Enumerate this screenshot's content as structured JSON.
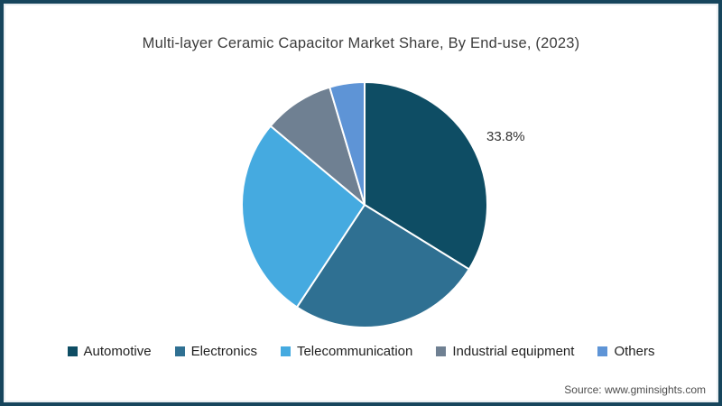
{
  "frame": {
    "border_color": "#16455c",
    "background": "#ffffff"
  },
  "header": {
    "title": "Multi-layer Ceramic Capacitor Market Share, By End-use, (2023)"
  },
  "chart_data": {
    "type": "pie",
    "title": "Multi-layer Ceramic Capacitor Market Share, By End-use, (2023)",
    "unit": "%",
    "start_angle_deg": 0,
    "direction": "clockwise",
    "categories": [
      "Automotive",
      "Electronics",
      "Telecommunication",
      "Industrial equipment",
      "Others"
    ],
    "values": [
      33.8,
      25.5,
      26.8,
      9.3,
      4.6
    ],
    "values_estimated_from_angles": [
      false,
      true,
      true,
      true,
      true
    ],
    "colors": [
      "#0e4d64",
      "#2f7092",
      "#45aae0",
      "#6f8092",
      "#5e94d6"
    ],
    "slice_stroke_color": "#ffffff",
    "data_labels": [
      {
        "series": "Automotive",
        "text": "33.8%"
      }
    ],
    "legend_position": "bottom"
  },
  "legend": {
    "items": [
      {
        "label": "Automotive",
        "color": "#0e4d64"
      },
      {
        "label": "Electronics",
        "color": "#2f7092"
      },
      {
        "label": "Telecommunication",
        "color": "#45aae0"
      },
      {
        "label": "Industrial equipment",
        "color": "#6f8092"
      },
      {
        "label": "Others",
        "color": "#5e94d6"
      }
    ]
  },
  "footer": {
    "source": "Source: www.gminsights.com"
  }
}
